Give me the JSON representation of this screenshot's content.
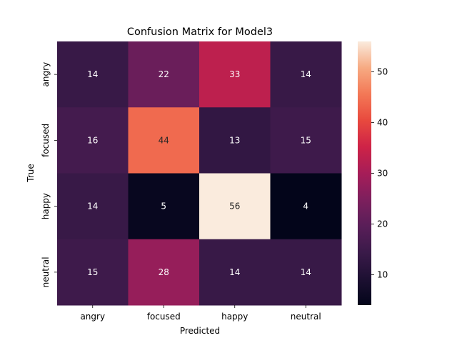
{
  "chart_data": {
    "type": "heatmap",
    "title": "Confusion Matrix for Model3",
    "xlabel": "Predicted",
    "ylabel": "True",
    "x_categories": [
      "angry",
      "focused",
      "happy",
      "neutral"
    ],
    "y_categories": [
      "angry",
      "focused",
      "happy",
      "neutral"
    ],
    "values": [
      [
        14,
        22,
        33,
        14
      ],
      [
        16,
        44,
        13,
        15
      ],
      [
        14,
        5,
        56,
        4
      ],
      [
        15,
        28,
        14,
        14
      ]
    ],
    "colorbar": {
      "colormap": "rocket",
      "range": [
        4,
        56
      ],
      "ticks": [
        10,
        20,
        30,
        40,
        50
      ]
    }
  }
}
